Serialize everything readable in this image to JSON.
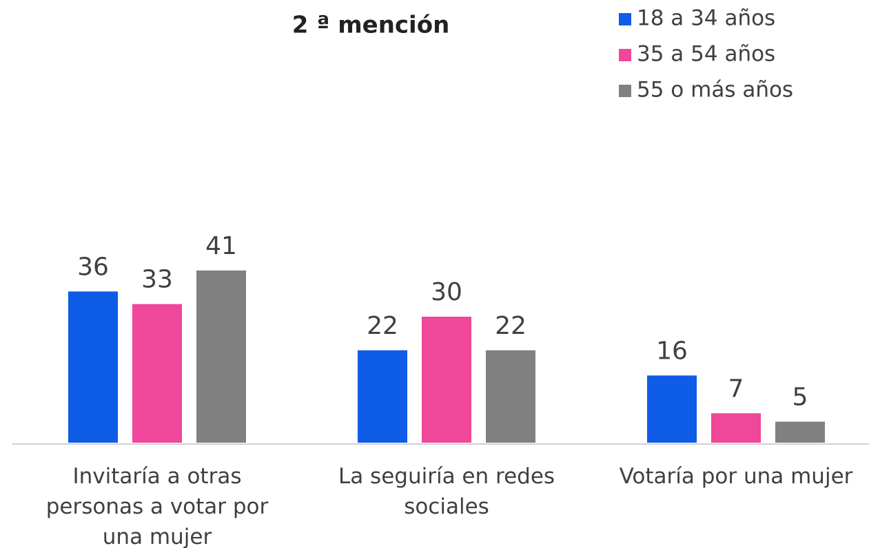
{
  "chart_data": {
    "type": "bar",
    "title": "2 ª mención",
    "categories": [
      "Invitaría a otras personas a votar por una mujer",
      "La seguiría en redes sociales",
      "Votaría por una mujer"
    ],
    "series": [
      {
        "name": "18 a 34 años",
        "color": "#0f5ce6",
        "values": [
          36,
          22,
          16
        ]
      },
      {
        "name": "35 a 54 años",
        "color": "#ef4799",
        "values": [
          33,
          30,
          7
        ]
      },
      {
        "name": "55 o más años",
        "color": "#808080",
        "values": [
          41,
          22,
          5
        ]
      }
    ],
    "legend": "top-right"
  }
}
